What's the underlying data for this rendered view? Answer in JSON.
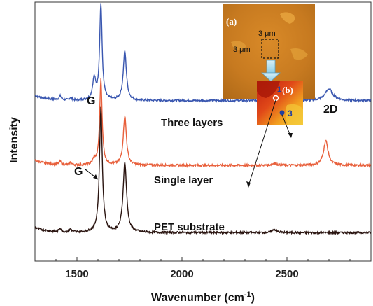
{
  "chart_data": {
    "type": "line",
    "xlabel": "Wavenumber (cm",
    "xlabel_sup": "-1",
    "xlabel_close": ")",
    "ylabel": "Intensity",
    "xlim": [
      1300,
      2900
    ],
    "xticks": [
      1500,
      2000,
      2500
    ],
    "xtick_labels": [
      "1500",
      "2000",
      "2500"
    ],
    "series": [
      {
        "name": "Three layers",
        "color": "#3a57b0",
        "baseline": 0.62,
        "noise": 0.004,
        "peaks": [
          {
            "x": 1420,
            "h": 0.015,
            "w": 6
          },
          {
            "x": 1470,
            "h": 0.01,
            "w": 6
          },
          {
            "x": 1582,
            "h": 0.08,
            "w": 9
          },
          {
            "x": 1614,
            "h": 0.37,
            "w": 7
          },
          {
            "x": 1728,
            "h": 0.19,
            "w": 9
          },
          {
            "x": 2440,
            "h": 0.008,
            "w": 12
          },
          {
            "x": 2700,
            "h": 0.045,
            "w": 22
          }
        ]
      },
      {
        "name": "Single layer",
        "color": "#e8603c",
        "baseline": 0.37,
        "noise": 0.004,
        "peaks": [
          {
            "x": 1420,
            "h": 0.012,
            "w": 6
          },
          {
            "x": 1470,
            "h": 0.01,
            "w": 6
          },
          {
            "x": 1582,
            "h": 0.02,
            "w": 8
          },
          {
            "x": 1614,
            "h": 0.33,
            "w": 7
          },
          {
            "x": 1728,
            "h": 0.19,
            "w": 9
          },
          {
            "x": 2440,
            "h": 0.008,
            "w": 12
          },
          {
            "x": 2685,
            "h": 0.095,
            "w": 13
          }
        ]
      },
      {
        "name": "PET substrate",
        "color": "#2a1410",
        "baseline": 0.11,
        "noise": 0.004,
        "peaks": [
          {
            "x": 1420,
            "h": 0.015,
            "w": 6
          },
          {
            "x": 1470,
            "h": 0.012,
            "w": 6
          },
          {
            "x": 1614,
            "h": 0.48,
            "w": 8
          },
          {
            "x": 1728,
            "h": 0.27,
            "w": 10
          },
          {
            "x": 2440,
            "h": 0.012,
            "w": 12
          }
        ]
      }
    ],
    "annotations": [
      {
        "text": "Three layers",
        "color": "#111"
      },
      {
        "text": "Single layer",
        "color": "#111"
      },
      {
        "text": "PET substrate",
        "color": "#111"
      },
      {
        "text": "G",
        "color": "#111"
      },
      {
        "text": "G",
        "color": "#111"
      },
      {
        "text": "2D",
        "color": "#111"
      }
    ],
    "inset": {
      "panel_a": "(a)",
      "scale_h": "3 μm",
      "scale_v": "3 μm",
      "panel_b": "(b)",
      "point_1": "1",
      "point_3": "3"
    }
  }
}
